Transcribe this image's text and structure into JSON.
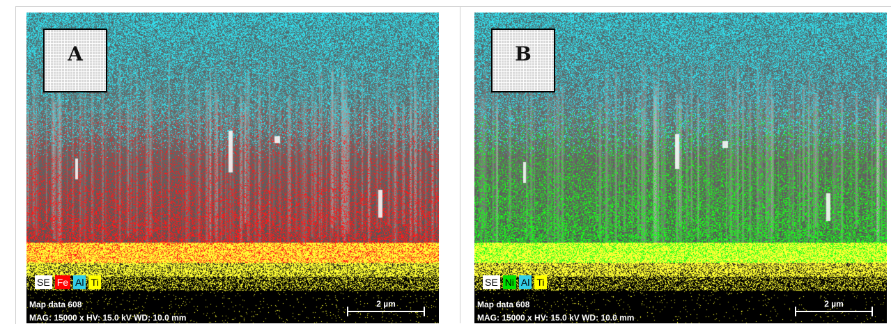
{
  "panels": [
    {
      "letter": "A",
      "legend": [
        {
          "label": "SE",
          "color": "#ffffff",
          "text_color": "#000000"
        },
        {
          "label": "Fe",
          "color": "#ff0000",
          "text_color": "#ffffff"
        },
        {
          "label": "Al",
          "color": "#33d0e8",
          "text_color": "#000000"
        },
        {
          "label": "Ti",
          "color": "#ffff00",
          "text_color": "#000000"
        }
      ],
      "map_title": "Map data 608",
      "parameters": "MAG: 15000 x HV: 15.0 kV   WD: 10.0 mm",
      "scale_label": "2 µm",
      "colors": {
        "top": "#33e0ee",
        "middle": "#ff1a1a",
        "base": "#ffff33"
      }
    },
    {
      "letter": "B",
      "legend": [
        {
          "label": "SE",
          "color": "#ffffff",
          "text_color": "#000000"
        },
        {
          "label": "Ni",
          "color": "#00e000",
          "text_color": "#000000"
        },
        {
          "label": "Al",
          "color": "#33d0e8",
          "text_color": "#000000"
        },
        {
          "label": "Ti",
          "color": "#ffff00",
          "text_color": "#000000"
        }
      ],
      "map_title": "Map data 608",
      "parameters": "MAG: 15000 x HV: 15.0 kV   WD: 10.0 mm",
      "scale_label": "2 µm",
      "colors": {
        "top": "#33e0ee",
        "middle": "#1aff1a",
        "base": "#ffff33"
      }
    }
  ]
}
